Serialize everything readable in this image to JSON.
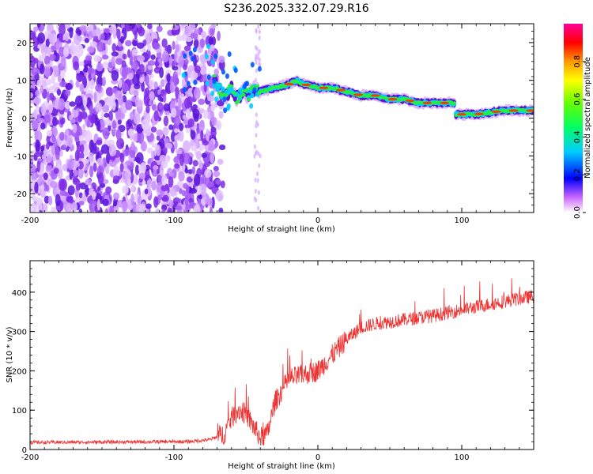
{
  "title": "S236.2025.332.07.29.R16",
  "chart_data": [
    {
      "type": "heatmap",
      "xlabel": "Height of straight line (km)",
      "ylabel": "Frequency (Hz)",
      "xlim": [
        -200,
        150
      ],
      "ylim": [
        -25,
        25
      ],
      "xticks": [
        -200,
        -100,
        0,
        100
      ],
      "yticks": [
        -20,
        -10,
        0,
        10,
        20
      ],
      "colorbar": {
        "label": "Normalized spectral amplitude",
        "range": [
          0,
          1
        ],
        "ticks": [
          "0.0",
          "0.2",
          "0.4",
          "0.6",
          "0.8"
        ]
      },
      "noise_region_x": [
        -200,
        -72
      ],
      "ridge": {
        "x": [
          -72,
          -68,
          -64,
          -60,
          -56,
          -52,
          -48,
          -44,
          -40,
          -30,
          -20,
          -15,
          -10,
          0,
          10,
          20,
          30,
          40,
          50,
          60,
          70,
          80,
          90,
          95,
          96,
          100,
          110,
          120,
          130,
          140,
          150
        ],
        "freq": [
          10,
          7,
          6,
          8,
          5,
          7,
          6,
          8,
          7,
          8,
          9,
          10,
          9,
          8,
          8,
          7,
          6,
          6,
          5,
          5,
          4,
          4,
          4,
          4,
          1,
          1,
          1,
          1.5,
          2,
          2,
          2
        ]
      }
    },
    {
      "type": "line",
      "xlabel": "Height of straight line (km)",
      "ylabel": "SNR (10 * v/v)",
      "xlim": [
        -200,
        150
      ],
      "ylim": [
        0,
        480
      ],
      "xticks": [
        -200,
        -100,
        0,
        100
      ],
      "yticks": [
        0,
        100,
        200,
        300,
        400
      ],
      "color": "#ee3333",
      "trend": {
        "x": [
          -200,
          -90,
          -75,
          -65,
          -60,
          -55,
          -50,
          -45,
          -40,
          -35,
          -30,
          -25,
          -20,
          -10,
          0,
          10,
          20,
          30,
          40,
          60,
          80,
          100,
          120,
          150
        ],
        "y": [
          18,
          20,
          25,
          40,
          80,
          100,
          90,
          60,
          30,
          40,
          120,
          150,
          180,
          190,
          200,
          240,
          280,
          310,
          320,
          330,
          340,
          355,
          370,
          390
        ]
      }
    }
  ]
}
